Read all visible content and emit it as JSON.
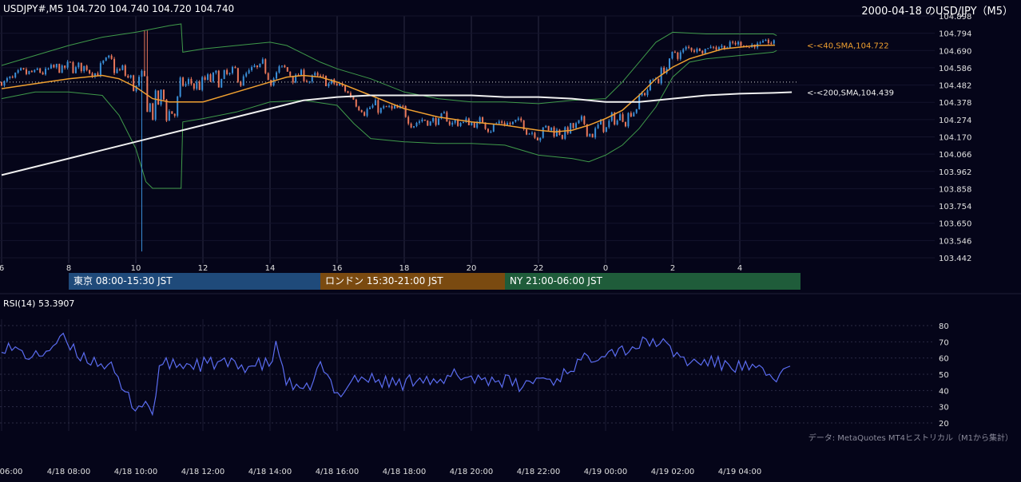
{
  "header": {
    "symbol_line": "USDJPY#,M5 104.720 104.740 104.720 104.740",
    "date_title": "2000-04-18 のUSD/JPY（M5）"
  },
  "sessions": [
    {
      "label": "東京 08:00-15:30 JST",
      "color": "#1f4a7a"
    },
    {
      "label": "ロンドン 15:30-21:00 JST",
      "color": "#7a4a10"
    },
    {
      "label": "NY 21:00-06:00 JST",
      "color": "#1f5c3a"
    }
  ],
  "rsi_label": "RSI(14) 53.3907",
  "source_note": "データ: MetaQuotes MT4ヒストリカル（M1から集計）",
  "colors": {
    "background": "#050519",
    "bull": "#3a8fd8",
    "bear": "#e8775a",
    "sma40": "#f0a030",
    "sma200": "#f0f0f0",
    "bollinger": "#3f9a4a",
    "rsi": "#5a6cf0"
  },
  "chart_data": [
    {
      "type": "candlestick",
      "title": "",
      "y_ticks": [
        "104.898",
        "104.794",
        "104.690",
        "104.586",
        "104.482",
        "104.378",
        "104.274",
        "104.170",
        "104.066",
        "103.962",
        "103.858",
        "103.754",
        "103.650",
        "103.546",
        "103.442"
      ],
      "ylim": [
        103.442,
        104.898
      ],
      "x_ticks": [
        "6",
        "8",
        "10",
        "12",
        "14",
        "16",
        "18",
        "20",
        "22",
        "0",
        "2",
        "4"
      ],
      "series": [
        {
          "name": "SMA,40",
          "label": "<-<40,SMA,104.722",
          "last": 104.722,
          "anchors": [
            [
              6,
              104.46
            ],
            [
              7,
              104.49
            ],
            [
              8,
              104.52
            ],
            [
              9,
              104.54
            ],
            [
              9.5,
              104.52
            ],
            [
              10,
              104.47
            ],
            [
              10.5,
              104.4
            ],
            [
              11,
              104.38
            ],
            [
              12,
              104.38
            ],
            [
              13,
              104.44
            ],
            [
              14,
              104.5
            ],
            [
              14.5,
              104.53
            ],
            [
              15,
              104.54
            ],
            [
              15.5,
              104.53
            ],
            [
              16,
              104.5
            ],
            [
              17,
              104.42
            ],
            [
              18,
              104.34
            ],
            [
              19,
              104.29
            ],
            [
              20,
              104.26
            ],
            [
              21,
              104.24
            ],
            [
              22,
              104.21
            ],
            [
              22.5,
              104.2
            ],
            [
              23,
              104.21
            ],
            [
              23.5,
              104.24
            ],
            [
              24,
              104.28
            ],
            [
              24.5,
              104.33
            ],
            [
              25,
              104.42
            ],
            [
              25.5,
              104.52
            ],
            [
              26,
              104.59
            ],
            [
              26.5,
              104.64
            ],
            [
              27,
              104.67
            ],
            [
              27.5,
              104.7
            ],
            [
              28,
              104.71
            ],
            [
              28.5,
              104.72
            ],
            [
              29.05,
              104.722
            ]
          ]
        },
        {
          "name": "SMA,200",
          "label": "<-<200,SMA,104.439",
          "last": 104.439,
          "anchors": [
            [
              6,
              103.94
            ],
            [
              8,
              104.04
            ],
            [
              10,
              104.14
            ],
            [
              12,
              104.24
            ],
            [
              13,
              104.29
            ],
            [
              14,
              104.34
            ],
            [
              15,
              104.39
            ],
            [
              16,
              104.41
            ],
            [
              17,
              104.42
            ],
            [
              18,
              104.42
            ],
            [
              19,
              104.42
            ],
            [
              20,
              104.42
            ],
            [
              21,
              104.41
            ],
            [
              22,
              104.41
            ],
            [
              23,
              104.4
            ],
            [
              24,
              104.38
            ],
            [
              25,
              104.38
            ],
            [
              26,
              104.4
            ],
            [
              27,
              104.42
            ],
            [
              28,
              104.43
            ],
            [
              29,
              104.435
            ],
            [
              29.55,
              104.439
            ]
          ]
        }
      ],
      "bollinger": {
        "upper": [
          [
            6,
            104.6
          ],
          [
            7,
            104.66
          ],
          [
            8,
            104.72
          ],
          [
            9,
            104.77
          ],
          [
            10,
            104.8
          ],
          [
            11,
            104.84
          ],
          [
            11.35,
            104.85
          ],
          [
            11.4,
            104.68
          ],
          [
            12,
            104.7
          ],
          [
            13,
            104.72
          ],
          [
            14,
            104.74
          ],
          [
            14.5,
            104.72
          ],
          [
            15,
            104.67
          ],
          [
            15.5,
            104.62
          ],
          [
            16,
            104.58
          ],
          [
            17,
            104.52
          ],
          [
            18,
            104.44
          ],
          [
            19,
            104.4
          ],
          [
            20,
            104.38
          ],
          [
            21,
            104.38
          ],
          [
            22,
            104.37
          ],
          [
            23,
            104.39
          ],
          [
            24,
            104.4
          ],
          [
            24.5,
            104.5
          ],
          [
            25,
            104.62
          ],
          [
            25.5,
            104.74
          ],
          [
            26,
            104.8
          ],
          [
            27,
            104.79
          ],
          [
            28,
            104.79
          ],
          [
            29,
            104.79
          ],
          [
            29.1,
            104.78
          ]
        ],
        "lower": [
          [
            6,
            104.4
          ],
          [
            7,
            104.44
          ],
          [
            8,
            104.44
          ],
          [
            9,
            104.42
          ],
          [
            9.5,
            104.3
          ],
          [
            10,
            104.1
          ],
          [
            10.3,
            103.9
          ],
          [
            10.5,
            103.86
          ],
          [
            11,
            103.86
          ],
          [
            11.35,
            103.86
          ],
          [
            11.4,
            104.26
          ],
          [
            12,
            104.28
          ],
          [
            13,
            104.32
          ],
          [
            14,
            104.38
          ],
          [
            15,
            104.39
          ],
          [
            16,
            104.36
          ],
          [
            16.5,
            104.25
          ],
          [
            17,
            104.16
          ],
          [
            18,
            104.14
          ],
          [
            19,
            104.13
          ],
          [
            20,
            104.13
          ],
          [
            21,
            104.12
          ],
          [
            22,
            104.06
          ],
          [
            23,
            104.04
          ],
          [
            23.5,
            104.02
          ],
          [
            24,
            104.06
          ],
          [
            24.5,
            104.12
          ],
          [
            25,
            104.22
          ],
          [
            25.5,
            104.35
          ],
          [
            26,
            104.53
          ],
          [
            26.5,
            104.62
          ],
          [
            27,
            104.64
          ],
          [
            28,
            104.66
          ],
          [
            29,
            104.68
          ],
          [
            29.1,
            104.69
          ]
        ]
      },
      "reference_level": 104.5
    },
    {
      "type": "line",
      "title": "RSI(14)",
      "y_ticks": [
        "80",
        "70",
        "60",
        "50",
        "40",
        "30",
        "20"
      ],
      "ylim": [
        20,
        80
      ],
      "x_ticks": [
        "06:00",
        "4/18 08:00",
        "4/18 10:00",
        "4/18 12:00",
        "4/18 14:00",
        "4/18 16:00",
        "4/18 18:00",
        "4/18 20:00",
        "4/18 22:00",
        "4/19 00:00",
        "4/19 02:00",
        "4/19 04:00"
      ],
      "series": [
        {
          "name": "RSI(14)",
          "last": 53.3907,
          "anchors": [
            [
              6,
              68
            ],
            [
              7,
              60
            ],
            [
              7.8,
              72
            ],
            [
              8.2,
              63
            ],
            [
              8.8,
              58
            ],
            [
              9.2,
              56
            ],
            [
              9.6,
              40
            ],
            [
              10.0,
              30
            ],
            [
              10.3,
              33
            ],
            [
              10.5,
              25
            ],
            [
              10.7,
              55
            ],
            [
              11,
              56
            ],
            [
              12,
              56
            ],
            [
              12.5,
              57
            ],
            [
              13,
              55
            ],
            [
              14,
              56
            ],
            [
              14.2,
              68
            ],
            [
              14.5,
              45
            ],
            [
              15,
              37
            ],
            [
              15.5,
              55
            ],
            [
              16,
              37
            ],
            [
              16.5,
              48
            ],
            [
              17,
              47
            ],
            [
              17.5,
              45
            ],
            [
              18,
              44
            ],
            [
              18.5,
              50
            ],
            [
              19,
              42
            ],
            [
              19.5,
              50
            ],
            [
              20,
              48
            ],
            [
              20.5,
              47
            ],
            [
              21,
              46
            ],
            [
              21.5,
              42
            ],
            [
              22,
              48
            ],
            [
              22.5,
              46
            ],
            [
              23,
              55
            ],
            [
              23.5,
              60
            ],
            [
              24,
              65
            ],
            [
              24.5,
              65
            ],
            [
              25,
              68
            ],
            [
              25.5,
              71
            ],
            [
              26,
              64
            ],
            [
              26.5,
              57
            ],
            [
              27,
              58
            ],
            [
              27.5,
              56
            ],
            [
              28,
              55
            ],
            [
              28.5,
              52
            ],
            [
              29,
              48
            ],
            [
              29.5,
              53
            ]
          ]
        }
      ]
    }
  ]
}
